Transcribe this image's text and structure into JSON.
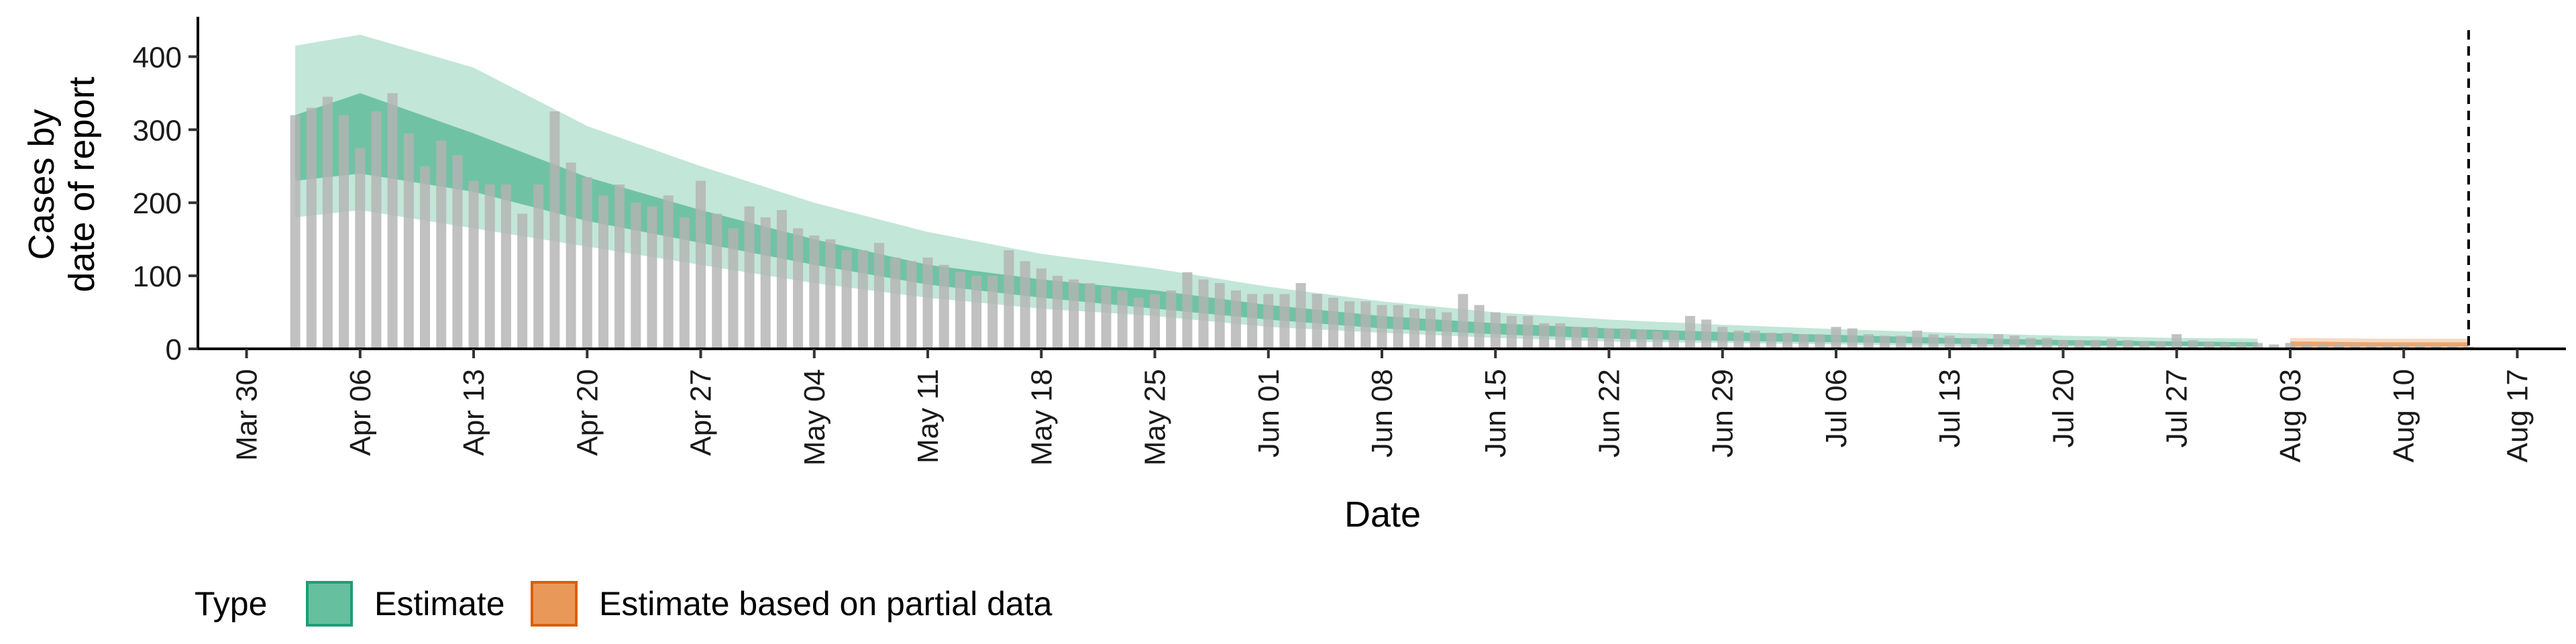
{
  "chart_data": {
    "type": "bar",
    "xlabel": "Date",
    "ylabel_lines": [
      "Cases by",
      "date of report"
    ],
    "ylim": [
      0,
      450
    ],
    "y_ticks": [
      0,
      100,
      200,
      300,
      400
    ],
    "xlim": [
      "2020-03-27",
      "2020-08-20"
    ],
    "x_ticks": [
      {
        "date": "2020-03-30",
        "label": "Mar 30"
      },
      {
        "date": "2020-04-06",
        "label": "Apr 06"
      },
      {
        "date": "2020-04-13",
        "label": "Apr 13"
      },
      {
        "date": "2020-04-20",
        "label": "Apr 20"
      },
      {
        "date": "2020-04-27",
        "label": "Apr 27"
      },
      {
        "date": "2020-05-04",
        "label": "May 04"
      },
      {
        "date": "2020-05-11",
        "label": "May 11"
      },
      {
        "date": "2020-05-18",
        "label": "May 18"
      },
      {
        "date": "2020-05-25",
        "label": "May 25"
      },
      {
        "date": "2020-06-01",
        "label": "Jun 01"
      },
      {
        "date": "2020-06-08",
        "label": "Jun 08"
      },
      {
        "date": "2020-06-15",
        "label": "Jun 15"
      },
      {
        "date": "2020-06-22",
        "label": "Jun 22"
      },
      {
        "date": "2020-06-29",
        "label": "Jun 29"
      },
      {
        "date": "2020-07-06",
        "label": "Jul 06"
      },
      {
        "date": "2020-07-13",
        "label": "Jul 13"
      },
      {
        "date": "2020-07-20",
        "label": "Jul 20"
      },
      {
        "date": "2020-07-27",
        "label": "Jul 27"
      },
      {
        "date": "2020-08-03",
        "label": "Aug 03"
      },
      {
        "date": "2020-08-10",
        "label": "Aug 10"
      },
      {
        "date": "2020-08-17",
        "label": "Aug 17"
      }
    ],
    "bars_start_date": "2020-04-02",
    "reported_cases": [
      320,
      330,
      345,
      320,
      275,
      325,
      350,
      295,
      250,
      285,
      265,
      230,
      225,
      225,
      185,
      225,
      325,
      255,
      235,
      210,
      225,
      200,
      195,
      210,
      180,
      230,
      185,
      165,
      195,
      180,
      190,
      165,
      155,
      150,
      135,
      135,
      145,
      125,
      120,
      125,
      115,
      105,
      100,
      100,
      135,
      120,
      110,
      100,
      95,
      90,
      85,
      80,
      70,
      75,
      80,
      105,
      95,
      90,
      80,
      75,
      75,
      75,
      90,
      75,
      70,
      65,
      65,
      60,
      60,
      55,
      55,
      50,
      75,
      60,
      50,
      45,
      45,
      35,
      35,
      30,
      30,
      28,
      28,
      26,
      24,
      24,
      45,
      40,
      30,
      25,
      25,
      22,
      22,
      20,
      20,
      30,
      28,
      20,
      18,
      18,
      25,
      20,
      18,
      15,
      15,
      20,
      18,
      15,
      15,
      12,
      12,
      12,
      14,
      12,
      10,
      10,
      20,
      12,
      10,
      8,
      8,
      8,
      6,
      8,
      6,
      6,
      6,
      5,
      5,
      5,
      5,
      5,
      4,
      4,
      3
    ],
    "estimate_band_start": "2020-04-02",
    "estimate_band_end": "2020-08-01",
    "partial_band_start": "2020-08-03",
    "partial_band_end": "2020-08-14",
    "estimate_anchor_points": [
      {
        "date": "2020-04-02",
        "outer": [
          180,
          415
        ],
        "inner": [
          230,
          320
        ]
      },
      {
        "date": "2020-04-06",
        "outer": [
          190,
          430
        ],
        "inner": [
          240,
          350
        ]
      },
      {
        "date": "2020-04-13",
        "outer": [
          165,
          385
        ],
        "inner": [
          215,
          295
        ]
      },
      {
        "date": "2020-04-20",
        "outer": [
          140,
          305
        ],
        "inner": [
          175,
          235
        ]
      },
      {
        "date": "2020-04-27",
        "outer": [
          115,
          250
        ],
        "inner": [
          145,
          190
        ]
      },
      {
        "date": "2020-05-04",
        "outer": [
          90,
          200
        ],
        "inner": [
          115,
          150
        ]
      },
      {
        "date": "2020-05-11",
        "outer": [
          70,
          160
        ],
        "inner": [
          88,
          115
        ]
      },
      {
        "date": "2020-05-18",
        "outer": [
          55,
          130
        ],
        "inner": [
          70,
          95
        ]
      },
      {
        "date": "2020-05-25",
        "outer": [
          45,
          110
        ],
        "inner": [
          55,
          80
        ]
      },
      {
        "date": "2020-06-01",
        "outer": [
          30,
          85
        ],
        "inner": [
          40,
          60
        ]
      },
      {
        "date": "2020-06-08",
        "outer": [
          22,
          65
        ],
        "inner": [
          28,
          45
        ]
      },
      {
        "date": "2020-06-15",
        "outer": [
          15,
          50
        ],
        "inner": [
          20,
          35
        ]
      },
      {
        "date": "2020-06-22",
        "outer": [
          10,
          40
        ],
        "inner": [
          14,
          28
        ]
      },
      {
        "date": "2020-06-29",
        "outer": [
          8,
          33
        ],
        "inner": [
          11,
          23
        ]
      },
      {
        "date": "2020-07-06",
        "outer": [
          6,
          27
        ],
        "inner": [
          9,
          19
        ]
      },
      {
        "date": "2020-07-13",
        "outer": [
          4,
          22
        ],
        "inner": [
          7,
          15
        ]
      },
      {
        "date": "2020-07-20",
        "outer": [
          3,
          18
        ],
        "inner": [
          5,
          12
        ]
      },
      {
        "date": "2020-07-27",
        "outer": [
          2,
          15
        ],
        "inner": [
          4,
          10
        ]
      },
      {
        "date": "2020-08-01",
        "outer": [
          2,
          14
        ],
        "inner": [
          3,
          9
        ]
      }
    ],
    "partial_anchor_points": [
      {
        "date": "2020-08-03",
        "outer": [
          1,
          15
        ],
        "inner": [
          3,
          10
        ]
      },
      {
        "date": "2020-08-08",
        "outer": [
          1,
          14
        ],
        "inner": [
          3,
          9
        ]
      },
      {
        "date": "2020-08-14",
        "outer": [
          1,
          14
        ],
        "inner": [
          3,
          9
        ]
      }
    ],
    "vline_date": "2020-08-14",
    "legend": {
      "title": "Type",
      "placement": "bottom-left",
      "items": [
        {
          "label": "Estimate",
          "fill": "#66bf9e",
          "stroke": "#1b9e77"
        },
        {
          "label": "Estimate based on partial data",
          "fill": "#e8995a",
          "stroke": "#d95f02"
        }
      ]
    },
    "colors": {
      "bars": "#b3b3b3",
      "estimate_outer": "#c2e6d8",
      "estimate_inner": "#66bf9e",
      "partial_outer": "#f7d9c2",
      "partial_inner": "#eaa672",
      "axis": "#000000",
      "vline": "#000000"
    }
  }
}
